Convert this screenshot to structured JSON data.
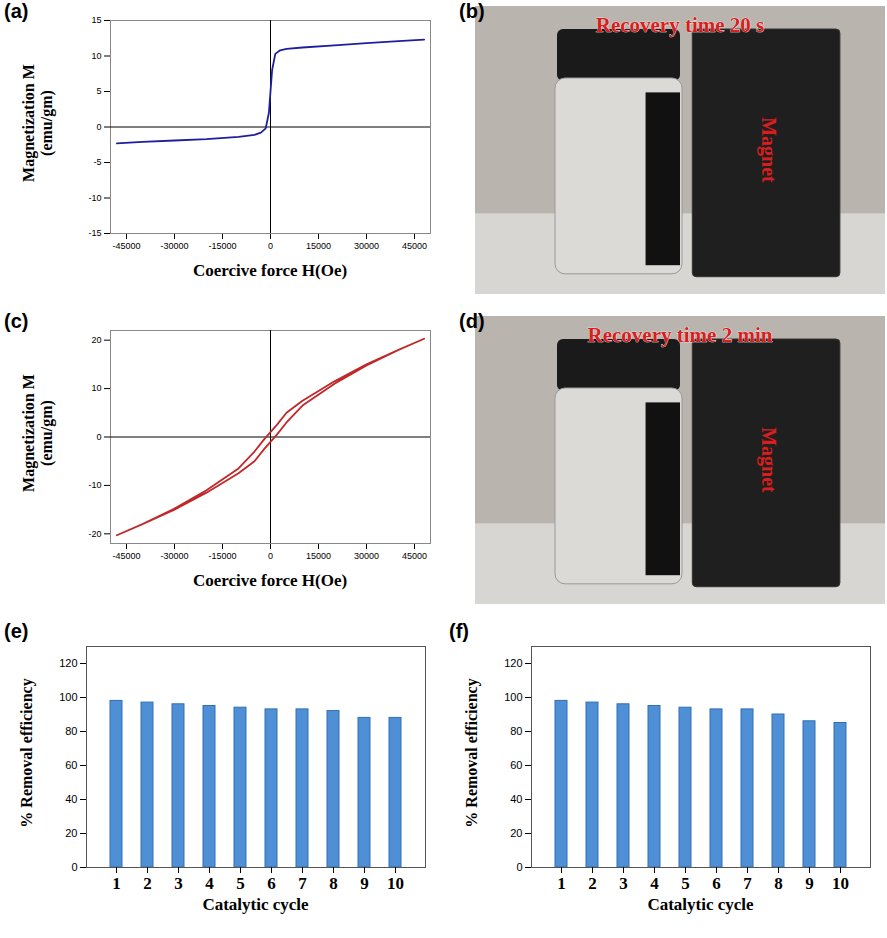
{
  "chart_data": [
    {
      "type": "line",
      "title": "(a)",
      "x_label": "Coercive force H(Oe)",
      "y_label": "Magnetization M (emu/gm)",
      "x": [
        -48000,
        -40000,
        -30000,
        -20000,
        -10000,
        -5000,
        -3000,
        -1500,
        -500,
        0,
        500,
        1500,
        3000,
        5000,
        10000,
        20000,
        30000,
        40000,
        48000
      ],
      "values": [
        -2.3,
        -2.1,
        -1.9,
        -1.7,
        -1.4,
        -1.1,
        -0.8,
        -0.2,
        2,
        5,
        8,
        10.3,
        10.8,
        11.0,
        11.2,
        11.5,
        11.8,
        12.1,
        12.3
      ],
      "color": "#1f1f9e",
      "xlim": [
        -50000,
        50000
      ],
      "xticks": [
        -45000,
        -30000,
        -15000,
        0,
        15000,
        30000,
        45000
      ],
      "ylim": [
        -15,
        15
      ],
      "yticks": [
        -15,
        -10,
        -5,
        0,
        5,
        10,
        15
      ]
    },
    {
      "type": "photo",
      "title": "(b)",
      "annotations": [
        "Recovery time 20 s",
        "Magnet"
      ]
    },
    {
      "type": "line",
      "title": "(c)",
      "x_label": "Coercive force H(Oe)",
      "y_label": "Magnetization M (emu/gm)",
      "x": [
        48000,
        40000,
        30000,
        20000,
        10000,
        5000,
        2000,
        0,
        -2000,
        -5000,
        -10000,
        -20000,
        -30000,
        -40000,
        -48000,
        -40000,
        -30000,
        -20000,
        -10000,
        -5000,
        -2000,
        0,
        2000,
        5000,
        10000,
        20000,
        30000,
        40000,
        48000
      ],
      "values": [
        20.3,
        18,
        15,
        11.5,
        7.5,
        5,
        2.5,
        1,
        -0.5,
        -3,
        -6.5,
        -11,
        -14.8,
        -18,
        -20.3,
        -18,
        -15,
        -11.5,
        -7.5,
        -5,
        -2.5,
        -1,
        0.5,
        3,
        6.5,
        11,
        14.8,
        18,
        20.3
      ],
      "color": "#c0282a",
      "xlim": [
        -50000,
        50000
      ],
      "xticks": [
        -45000,
        -30000,
        -15000,
        0,
        15000,
        30000,
        45000
      ],
      "ylim": [
        -22,
        22
      ],
      "yticks": [
        -20,
        -10,
        0,
        10,
        20
      ]
    },
    {
      "type": "photo",
      "title": "(d)",
      "annotations": [
        "Recovery time 2 min",
        "Magnet"
      ]
    },
    {
      "type": "bar",
      "title": "(e)",
      "x_label": "Catalytic cycle",
      "y_label": "% Removal efficiency",
      "categories": [
        1,
        2,
        3,
        4,
        5,
        6,
        7,
        8,
        9,
        10
      ],
      "values": [
        98,
        97,
        96,
        95,
        94,
        93,
        93,
        92,
        88,
        88
      ],
      "color": "#4f8fd6",
      "ylim": [
        0,
        130
      ],
      "yticks": [
        0,
        20,
        40,
        60,
        80,
        100,
        120
      ]
    },
    {
      "type": "bar",
      "title": "(f)",
      "x_label": "Catalytic cycle",
      "y_label": "% Removal efficiency",
      "categories": [
        1,
        2,
        3,
        4,
        5,
        6,
        7,
        8,
        9,
        10
      ],
      "values": [
        98,
        97,
        96,
        95,
        94,
        93,
        93,
        90,
        86,
        85
      ],
      "color": "#4f8fd6",
      "ylim": [
        0,
        130
      ],
      "yticks": [
        0,
        20,
        40,
        60,
        80,
        100,
        120
      ]
    }
  ]
}
